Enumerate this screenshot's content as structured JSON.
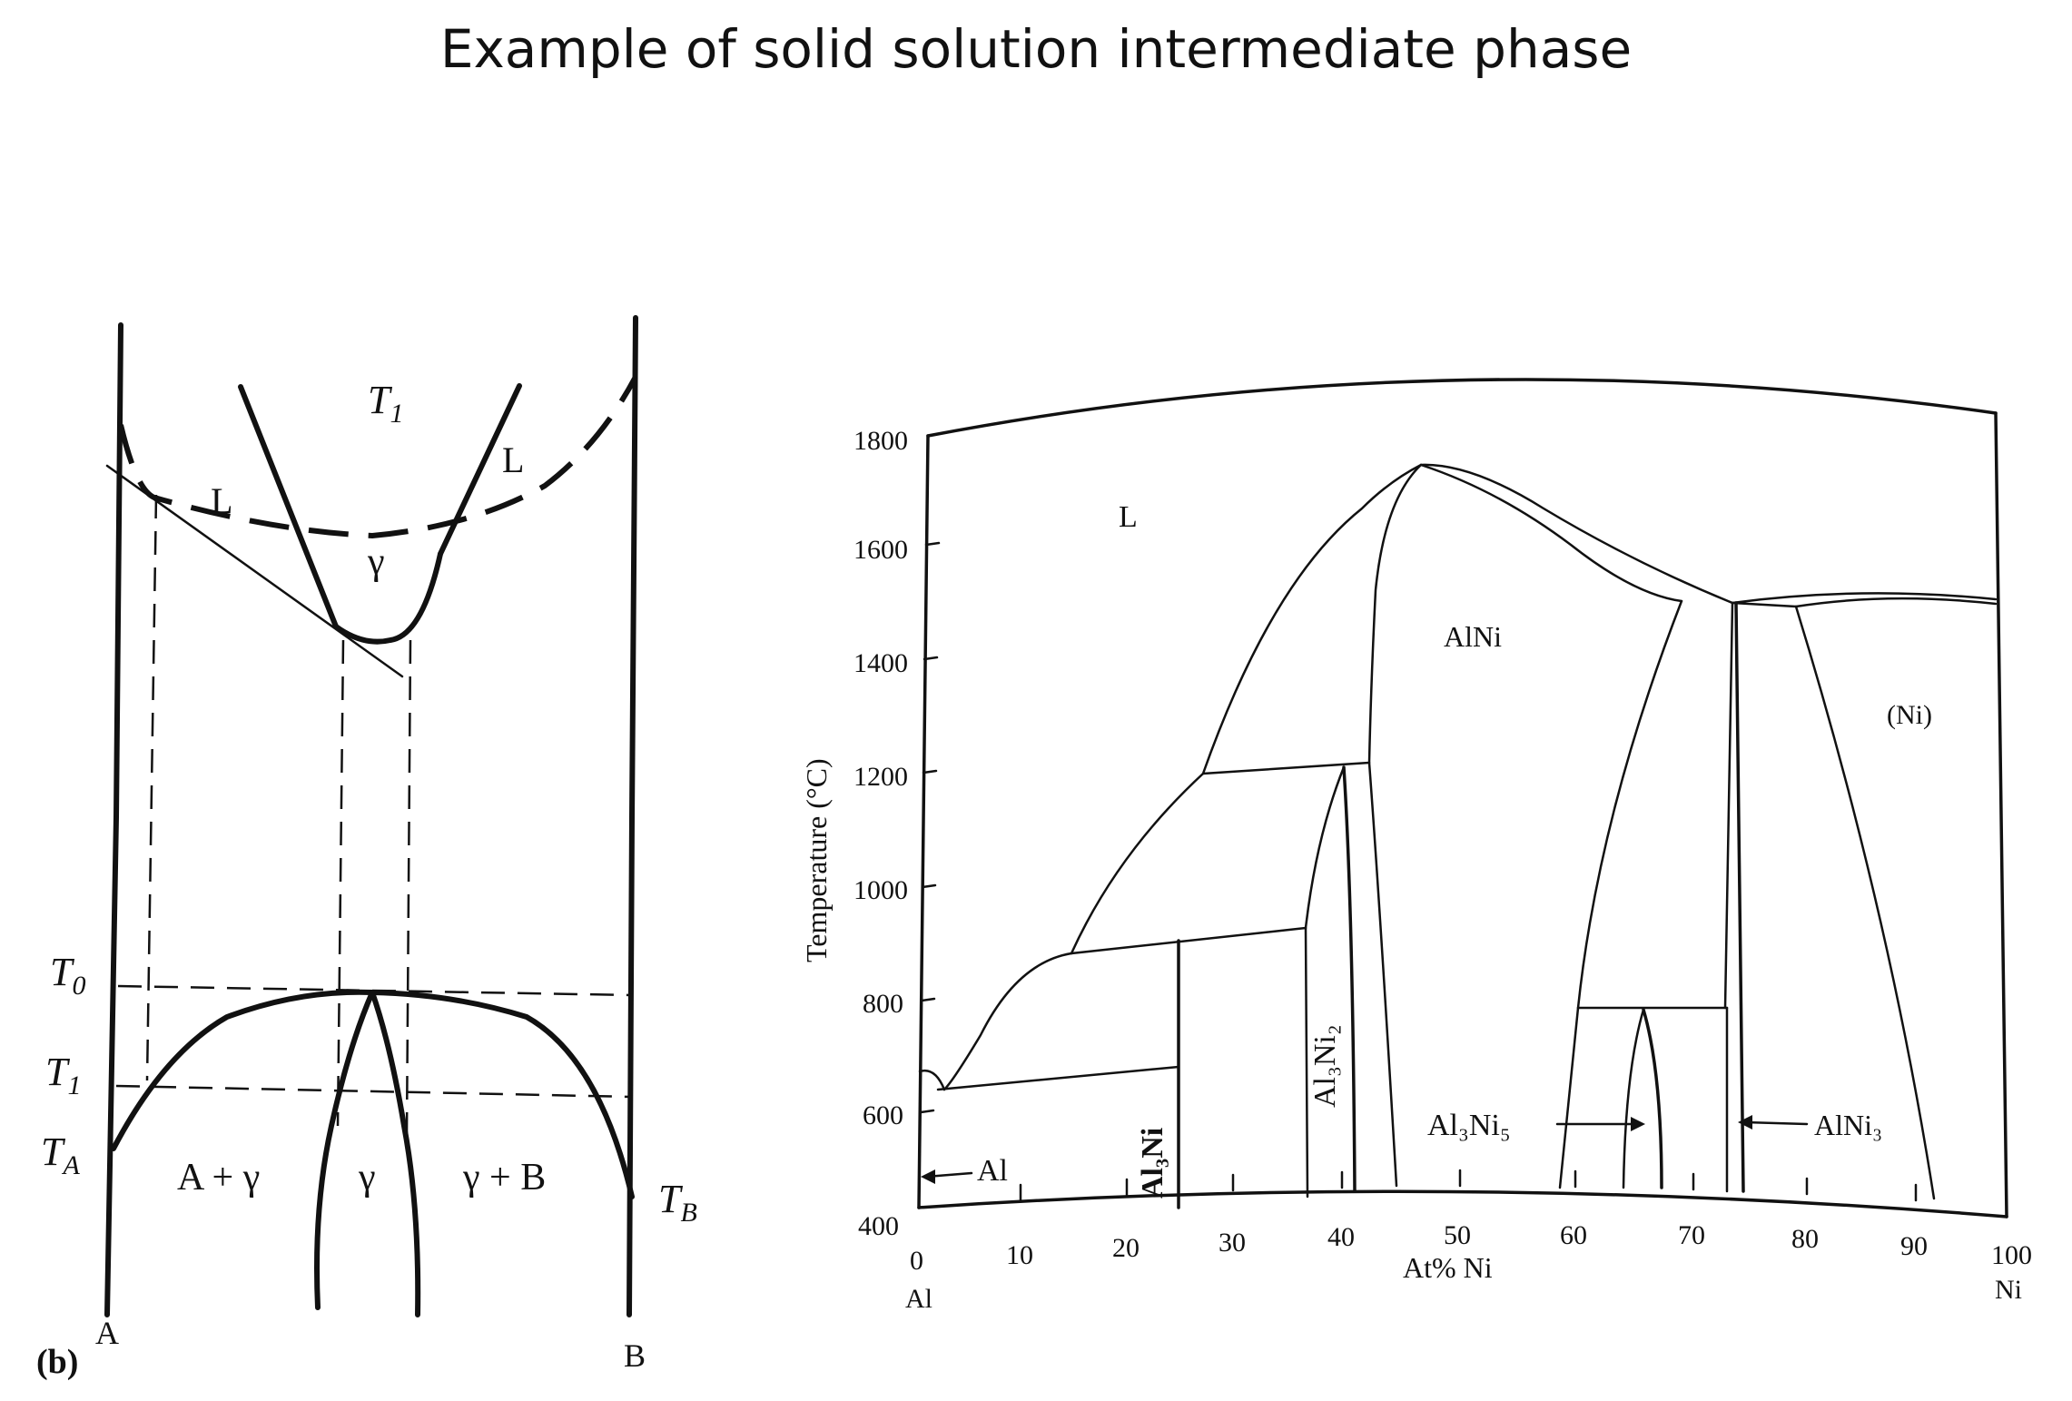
{
  "title": "Example of solid solution intermediate phase",
  "left_diagram": {
    "panel_label": "(b)",
    "labels": {
      "T1_top": "T",
      "T1_top_sub": "1",
      "L_left": "L",
      "L_right": "L",
      "gamma_top": "γ",
      "T0": "T",
      "T0_sub": "0",
      "T1_side": "T",
      "T1_side_sub": "1",
      "TA": "T",
      "TA_sub": "A",
      "TB": "T",
      "TB_sub": "B",
      "A_plus_gamma": "A + γ",
      "gamma_bottom": "γ",
      "gamma_plus_B": "γ + B",
      "A": "A",
      "B": "B"
    }
  },
  "right_diagram": {
    "y_axis_label": "Temperature (°C)",
    "x_axis_label": "At% Ni",
    "y_ticks": [
      "1800",
      "1600",
      "1400",
      "1200",
      "1000",
      "800",
      "600",
      "400"
    ],
    "x_ticks": [
      "0",
      "10",
      "20",
      "30",
      "40",
      "50",
      "60",
      "70",
      "80",
      "90",
      "100"
    ],
    "x_left_element": "Al",
    "x_right_element": "Ni",
    "regions": {
      "liquid": "L",
      "alni": "AlNi",
      "ni": "(Ni)"
    },
    "phase_labels": {
      "al_arrow": "Al",
      "al3ni": "Al₃Ni",
      "al3ni2": "Al₃Ni₂",
      "al3ni5": "Al₃Ni₅",
      "alni3": "AlNi₃"
    }
  }
}
